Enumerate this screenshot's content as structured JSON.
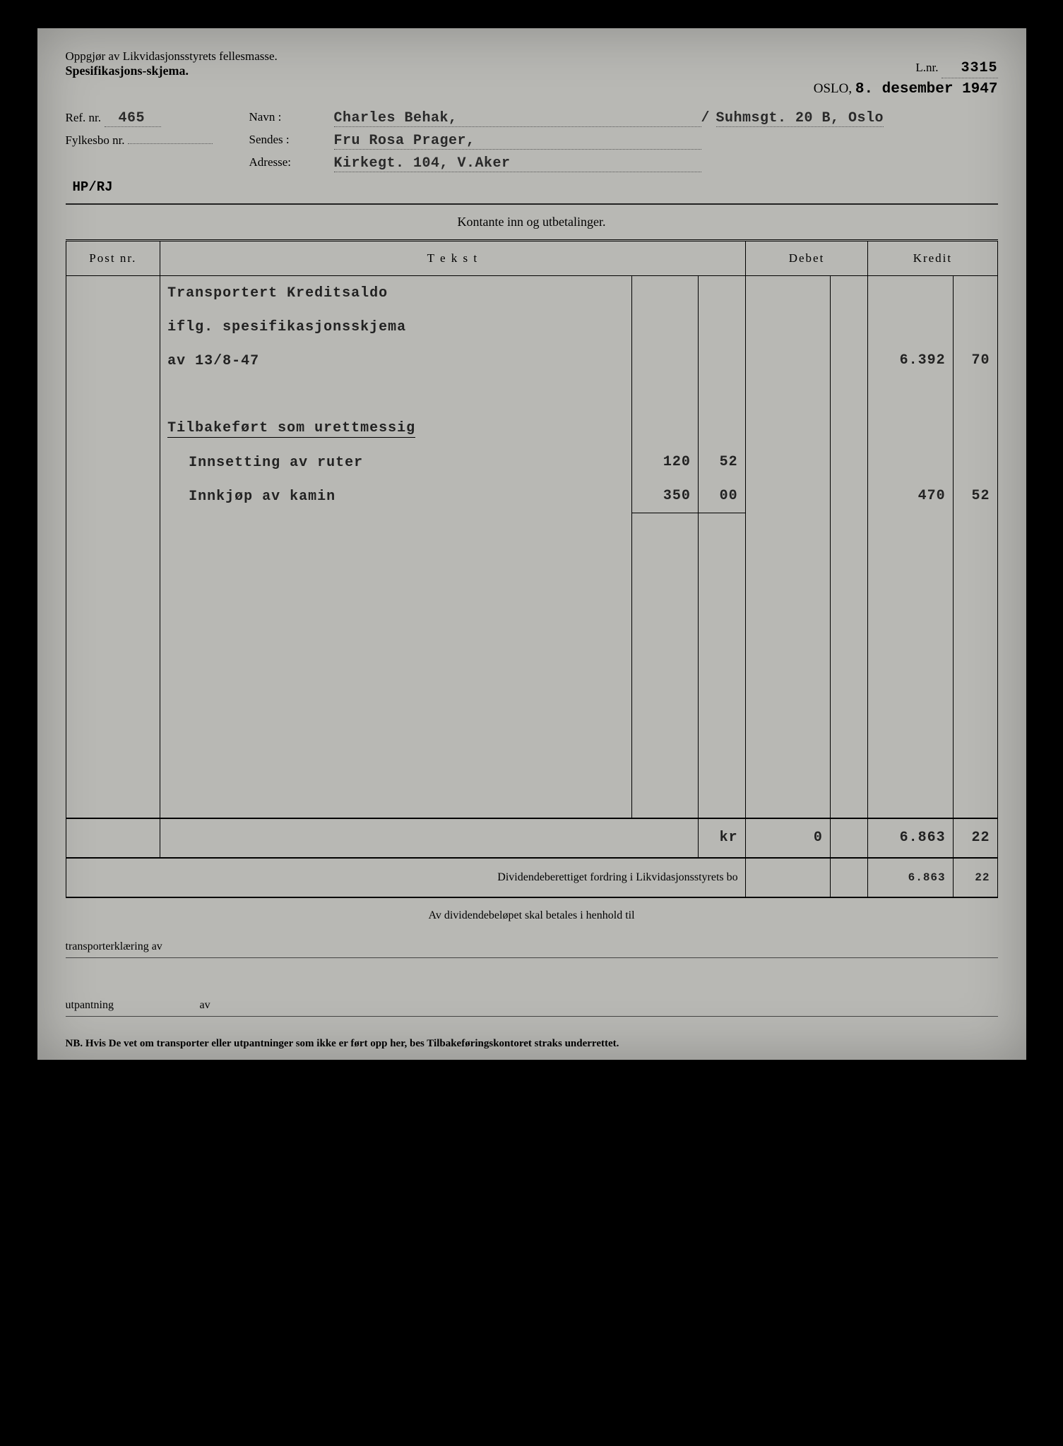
{
  "header": {
    "line1": "Oppgjør av Likvidasjonsstyrets fellesmasse.",
    "line2": "Spesifikasjons-skjema.",
    "lnr_label": "L.nr.",
    "lnr": "3315",
    "city": "OSLO,",
    "date": "8. desember 1947"
  },
  "info": {
    "ref_label": "Ref. nr.",
    "ref": "465",
    "fylkesbo_label": "Fylkesbo nr.",
    "fylkesbo": "",
    "navn_label": "Navn :",
    "navn": "Charles Behak,",
    "sendes_label": "Sendes :",
    "sendes": "Fru Rosa Prager,",
    "adresse_label": "Adresse:",
    "adresse": "Kirkegt. 104, V.Aker",
    "addr2": "Suhmsgt. 20 B, Oslo",
    "hp": "HP/RJ"
  },
  "section_title": "Kontante inn og utbetalinger.",
  "columns": {
    "post": "Post nr.",
    "tekst": "T e k s t",
    "debet": "Debet",
    "kredit": "Kredit"
  },
  "rows": [
    {
      "text": "Transportert Kreditsaldo",
      "sub_a": "",
      "sub_b": "",
      "debet_a": "",
      "debet_b": "",
      "kredit_a": "",
      "kredit_b": ""
    },
    {
      "text": "iflg. spesifikasjonsskjema",
      "sub_a": "",
      "sub_b": "",
      "debet_a": "",
      "debet_b": "",
      "kredit_a": "",
      "kredit_b": ""
    },
    {
      "text": "av 13/8-47",
      "sub_a": "",
      "sub_b": "",
      "debet_a": "",
      "debet_b": "",
      "kredit_a": "6.392",
      "kredit_b": "70"
    },
    {
      "text": "",
      "sub_a": "",
      "sub_b": "",
      "debet_a": "",
      "debet_b": "",
      "kredit_a": "",
      "kredit_b": ""
    },
    {
      "text": "Tilbakeført som urettmessig",
      "underline": true,
      "sub_a": "",
      "sub_b": "",
      "debet_a": "",
      "debet_b": "",
      "kredit_a": "",
      "kredit_b": ""
    },
    {
      "text": "Innsetting av ruter",
      "indent": true,
      "sub_a": "120",
      "sub_b": "52",
      "debet_a": "",
      "debet_b": "",
      "kredit_a": "",
      "kredit_b": ""
    },
    {
      "text": "Innkjøp av kamin",
      "indent": true,
      "sub_a": "350",
      "sub_b": "00",
      "sub_rule": true,
      "debet_a": "",
      "debet_b": "",
      "kredit_a": "470",
      "kredit_b": "52"
    },
    {
      "text": "",
      "sub_a": "",
      "sub_b": "",
      "debet_a": "",
      "debet_b": "",
      "kredit_a": "",
      "kredit_b": ""
    },
    {
      "text": "",
      "sub_a": "",
      "sub_b": "",
      "debet_a": "",
      "debet_b": "",
      "kredit_a": "",
      "kredit_b": ""
    },
    {
      "text": "",
      "sub_a": "",
      "sub_b": "",
      "debet_a": "",
      "debet_b": "",
      "kredit_a": "",
      "kredit_b": ""
    },
    {
      "text": "",
      "sub_a": "",
      "sub_b": "",
      "debet_a": "",
      "debet_b": "",
      "kredit_a": "",
      "kredit_b": ""
    },
    {
      "text": "",
      "sub_a": "",
      "sub_b": "",
      "debet_a": "",
      "debet_b": "",
      "kredit_a": "",
      "kredit_b": ""
    },
    {
      "text": "",
      "sub_a": "",
      "sub_b": "",
      "debet_a": "",
      "debet_b": "",
      "kredit_a": "",
      "kredit_b": ""
    },
    {
      "text": "",
      "sub_a": "",
      "sub_b": "",
      "debet_a": "",
      "debet_b": "",
      "kredit_a": "",
      "kredit_b": ""
    },
    {
      "text": "",
      "sub_a": "",
      "sub_b": "",
      "debet_a": "",
      "debet_b": "",
      "kredit_a": "",
      "kredit_b": ""
    },
    {
      "text": "",
      "sub_a": "",
      "sub_b": "",
      "debet_a": "",
      "debet_b": "",
      "kredit_a": "",
      "kredit_b": ""
    }
  ],
  "totals": {
    "kr": "kr",
    "debet_a": "0",
    "debet_b": "",
    "kredit_a": "6.863",
    "kredit_b": "22"
  },
  "dividend": {
    "label": "Dividendeberettiget fordring i Likvidasjonsstyrets bo",
    "kredit_a": "6.863",
    "kredit_b": "22"
  },
  "footer": {
    "section": "Av dividendebeløpet skal betales i henhold til",
    "transport_label": "transporterklæring av",
    "utpantning_label": "utpantning",
    "av": "av",
    "nb": "NB. Hvis De vet om transporter eller utpantninger som ikke er ført opp her, bes Tilbakeføringskontoret straks underrettet."
  },
  "colors": {
    "page_bg": "#b8b8b4",
    "text": "#1a1a1a",
    "rule": "#000000"
  }
}
